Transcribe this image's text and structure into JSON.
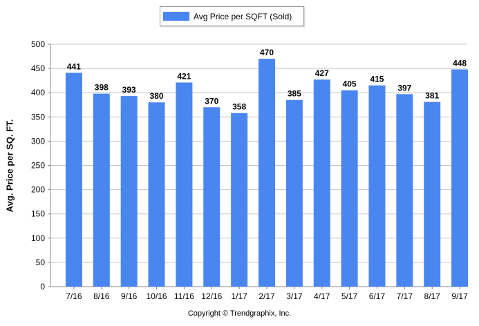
{
  "legend": {
    "label": "Avg Price per SQFT (Sold)"
  },
  "footer": {
    "copyright": "Copyright © Trendgraphix, Inc."
  },
  "colors": {
    "bar": "#4a86f0",
    "axis": "#000000",
    "grid": "#c4c4c4"
  },
  "chart_data": {
    "type": "bar",
    "title": "",
    "xlabel": "",
    "ylabel": "Avg. Price per SQ. FT.",
    "ylim": [
      0,
      500
    ],
    "yticks": [
      0,
      50,
      100,
      150,
      200,
      250,
      300,
      350,
      400,
      450,
      500
    ],
    "grid": true,
    "legend_position": "top",
    "categories": [
      "7/16",
      "8/16",
      "9/16",
      "10/16",
      "11/16",
      "12/16",
      "1/17",
      "2/17",
      "3/17",
      "4/17",
      "5/17",
      "6/17",
      "7/17",
      "8/17",
      "9/17"
    ],
    "series": [
      {
        "name": "Avg Price per SQFT (Sold)",
        "values": [
          441,
          398,
          393,
          380,
          421,
          370,
          358,
          470,
          385,
          427,
          405,
          415,
          397,
          381,
          448
        ]
      }
    ]
  }
}
